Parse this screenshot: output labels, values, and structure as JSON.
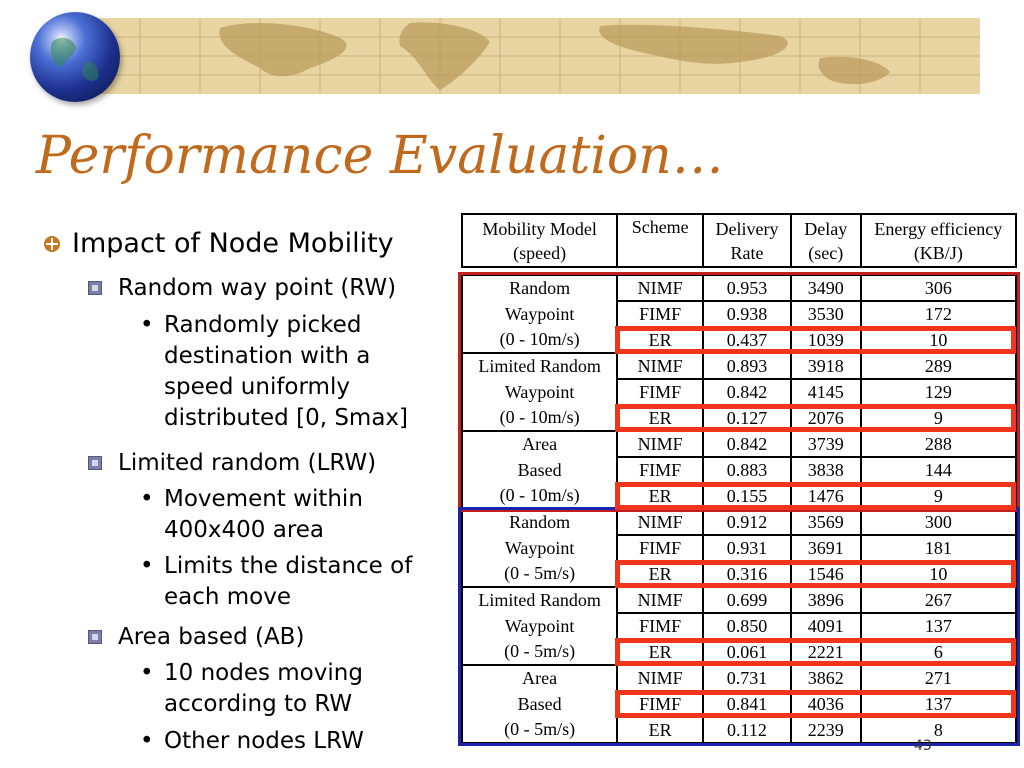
{
  "slide": {
    "title": "Performance Evaluation…",
    "page_number": "43"
  },
  "bullets": {
    "heading": "Impact of Node Mobility",
    "rw": "Random way point (RW)",
    "rw_detail": "Randomly picked destination with a speed uniformly distributed [0, Smax]",
    "lrw": "Limited random (LRW)",
    "lrw_detail_1": "Movement within 400x400 area",
    "lrw_detail_2": "Limits the distance of each move",
    "ab": "Area based (AB)",
    "ab_detail_1": "10 nodes moving according to RW",
    "ab_detail_2": "Other nodes LRW"
  },
  "table": {
    "headers": {
      "model_1": "Mobility Model",
      "model_2": "(speed)",
      "scheme": "Scheme",
      "delivery_1": "Delivery",
      "delivery_2": "Rate",
      "delay_1": "Delay",
      "delay_2": "(sec)",
      "energy_1": "Energy efficiency",
      "energy_2": "(KB/J)"
    },
    "groups": [
      {
        "model": [
          "Random",
          "Waypoint",
          "(0 - 10m/s)"
        ],
        "rows": [
          [
            "NIMF",
            "0.953",
            "3490",
            "306"
          ],
          [
            "FIMF",
            "0.938",
            "3530",
            "172"
          ],
          [
            "ER",
            "0.437",
            "1039",
            "10"
          ]
        ]
      },
      {
        "model": [
          "Limited Random",
          "Waypoint",
          "(0 - 10m/s)"
        ],
        "rows": [
          [
            "NIMF",
            "0.893",
            "3918",
            "289"
          ],
          [
            "FIMF",
            "0.842",
            "4145",
            "129"
          ],
          [
            "ER",
            "0.127",
            "2076",
            "9"
          ]
        ]
      },
      {
        "model": [
          "Area",
          "Based",
          "(0 - 10m/s)"
        ],
        "rows": [
          [
            "NIMF",
            "0.842",
            "3739",
            "288"
          ],
          [
            "FIMF",
            "0.883",
            "3838",
            "144"
          ],
          [
            "ER",
            "0.155",
            "1476",
            "9"
          ]
        ]
      },
      {
        "model": [
          "Random",
          "Waypoint",
          "(0 - 5m/s)"
        ],
        "rows": [
          [
            "NIMF",
            "0.912",
            "3569",
            "300"
          ],
          [
            "FIMF",
            "0.931",
            "3691",
            "181"
          ],
          [
            "ER",
            "0.316",
            "1546",
            "10"
          ]
        ]
      },
      {
        "model": [
          "Limited Random",
          "Waypoint",
          "(0 - 5m/s)"
        ],
        "rows": [
          [
            "NIMF",
            "0.699",
            "3896",
            "267"
          ],
          [
            "FIMF",
            "0.850",
            "4091",
            "137"
          ],
          [
            "ER",
            "0.061",
            "2221",
            "6"
          ]
        ]
      },
      {
        "model": [
          "Area",
          "Based",
          "(0 - 5m/s)"
        ],
        "rows": [
          [
            "NIMF",
            "0.731",
            "3862",
            "271"
          ],
          [
            "FIMF",
            "0.841",
            "4036",
            "137"
          ],
          [
            "ER",
            "0.112",
            "2239",
            "8"
          ]
        ]
      }
    ],
    "colors": {
      "high_speed_frame": "#c41f1f",
      "low_speed_frame": "#1a22b0",
      "highlight": "#f0351c"
    }
  }
}
